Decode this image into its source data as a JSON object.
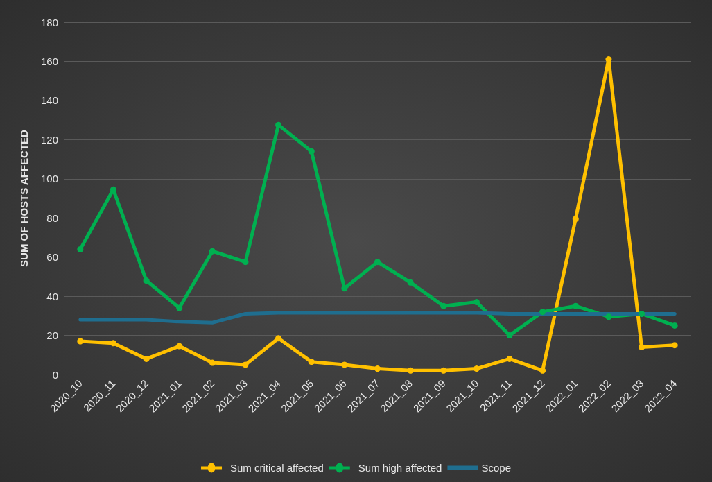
{
  "chart_data": {
    "type": "line",
    "ylabel": "SUM OF HOSTS AFFECTED",
    "categories": [
      "2020_10",
      "2020_11",
      "2020_12",
      "2021_01",
      "2021_02",
      "2021_03",
      "2021_04",
      "2021_05",
      "2021_06",
      "2021_07",
      "2021_08",
      "2021_09",
      "2021_10",
      "2021_11",
      "2021_12",
      "2022_01",
      "2022_02",
      "2022_03",
      "2022_04"
    ],
    "series": [
      {
        "name": "Sum critical affected",
        "color": "#ffc000",
        "marker": "circle",
        "values": [
          17,
          16,
          8,
          14.5,
          6,
          5,
          18.5,
          6.5,
          5,
          3,
          2,
          2,
          3,
          8,
          2,
          79.5,
          161,
          14,
          15
        ]
      },
      {
        "name": "Sum high affected",
        "color": "#00b050",
        "marker": "circle",
        "values": [
          64,
          94.5,
          48,
          34,
          63,
          57.5,
          127.5,
          114,
          44,
          57.5,
          47,
          35,
          37,
          20,
          32,
          35,
          29.5,
          31,
          25
        ]
      },
      {
        "name": "Scope",
        "color": "#1f6e8f",
        "marker": "none",
        "values": [
          28,
          28,
          28,
          27,
          26.5,
          31,
          31.5,
          31.5,
          31.5,
          31.5,
          31.5,
          31.5,
          31.5,
          31,
          31,
          31,
          31,
          31,
          31
        ]
      }
    ],
    "ylim": [
      0,
      180
    ],
    "yticks": [
      0,
      20,
      40,
      60,
      80,
      100,
      120,
      140,
      160,
      180
    ],
    "grid": "y",
    "legend": "bottom",
    "line_style": "solid"
  }
}
